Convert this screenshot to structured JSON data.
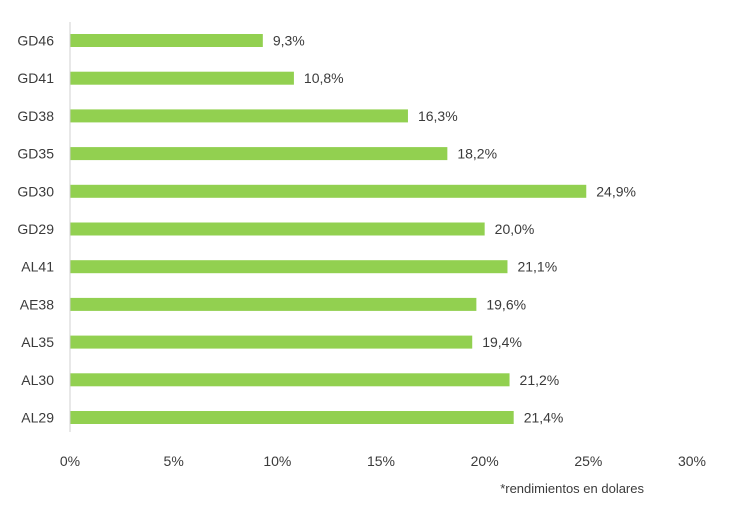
{
  "chart_data": {
    "type": "bar",
    "orientation": "horizontal",
    "categories": [
      "GD46",
      "GD41",
      "GD38",
      "GD35",
      "GD30",
      "GD29",
      "AL41",
      "AE38",
      "AL35",
      "AL30",
      "AL29"
    ],
    "values": [
      9.3,
      10.8,
      16.3,
      18.2,
      24.9,
      20.0,
      21.1,
      19.6,
      19.4,
      21.2,
      21.4
    ],
    "data_labels": [
      "9,3%",
      "10,8%",
      "16,3%",
      "18,2%",
      "24,9%",
      "20,0%",
      "21,1%",
      "19,6%",
      "19,4%",
      "21,2%",
      "21,4%"
    ],
    "x_ticks": [
      0,
      5,
      10,
      15,
      20,
      25,
      30
    ],
    "x_tick_labels": [
      "0%",
      "5%",
      "10%",
      "15%",
      "20%",
      "25%",
      "30%"
    ],
    "xlim": [
      0,
      30
    ],
    "grid": false,
    "legend": "none",
    "bar_color": "#92d050",
    "footnote": "*rendimientos en dolares"
  }
}
